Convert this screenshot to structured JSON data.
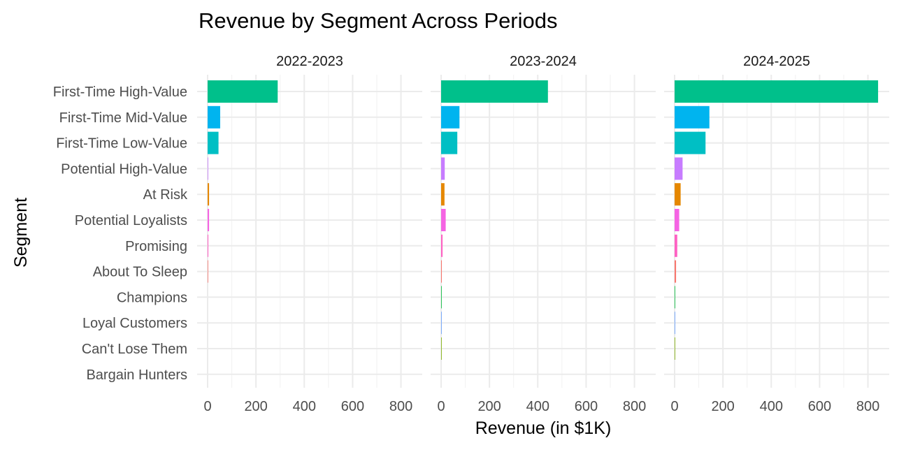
{
  "chart_data": {
    "type": "bar",
    "orientation": "horizontal",
    "title": "Revenue by Segment Across Periods",
    "xlabel": "Revenue (in $1K)",
    "ylabel": "Segment",
    "xlim": [
      0,
      850
    ],
    "x_ticks": [
      0,
      200,
      400,
      600,
      800
    ],
    "grid": true,
    "legend": "none",
    "categories": [
      "First-Time High-Value",
      "First-Time Mid-Value",
      "First-Time Low-Value",
      "Potential High-Value",
      "At Risk",
      "Potential Loyalists",
      "Promising",
      "About To Sleep",
      "Champions",
      "Loyal Customers",
      "Can't Lose Them",
      "Bargain Hunters"
    ],
    "colors": [
      "#00C08B",
      "#00B4EF",
      "#00BFC4",
      "#C77CFF",
      "#E58700",
      "#F564E3",
      "#FF61C3",
      "#F8766D",
      "#00BA38",
      "#619CFF",
      "#7CAE00",
      "#B79F00"
    ],
    "panels": [
      {
        "name": "2022-2023",
        "values": [
          290,
          52,
          45,
          2,
          6,
          6,
          3,
          2,
          0,
          0,
          0,
          0
        ]
      },
      {
        "name": "2023-2024",
        "values": [
          442,
          76,
          67,
          15,
          14,
          19,
          6,
          3,
          2,
          1,
          2,
          0
        ]
      },
      {
        "name": "2024-2025",
        "values": [
          842,
          144,
          128,
          33,
          25,
          19,
          11,
          6,
          2,
          2,
          2,
          0
        ]
      }
    ]
  }
}
